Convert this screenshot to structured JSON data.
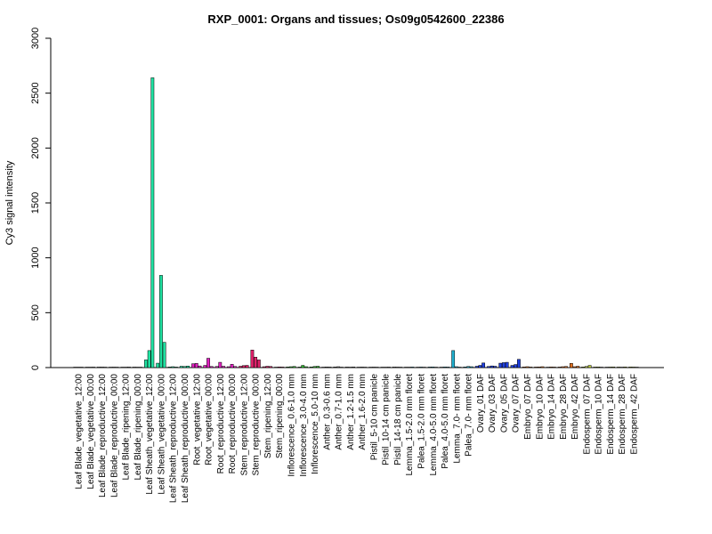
{
  "chart_data": {
    "type": "bar",
    "title": "RXP_0001: Organs and tissues; Os09g0542600_22386",
    "xlabel": "",
    "ylabel": "Cy3 signal intensity",
    "ylim": [
      0,
      3000
    ],
    "yticks": [
      0,
      500,
      1000,
      1500,
      2000,
      2500,
      3000
    ],
    "grid": false,
    "categories": [
      "Leaf Blade_vegetative_12:00",
      "Leaf Blade_vegetative_00:00",
      "Leaf Blade_reproductive_12:00",
      "Leaf Blade_reproductive_00:00",
      "Leaf Blade_ripening_12:00",
      "Leaf Blade_ripening_00:00",
      "Leaf Sheath_vegetative_12:00",
      "Leaf Sheath_vegetative_00:00",
      "Leaf Sheath_reproductive_12:00",
      "Leaf Sheath_reproductive_00:00",
      "Root_vegetative_12:00",
      "Root_vegetative_00:00",
      "Root_reproductive_12:00",
      "Root_reproductive_00:00",
      "Stem_reproductive_12:00",
      "Stem_reproductive_00:00",
      "Stem_ripening_12:00",
      "Stem_ripening_00:00",
      "Inflorescence_0.6-1.0 mm",
      "Inflorescence_3.0-4.0 mm",
      "Inflorescence_5.0-10 mm",
      "Anther_0.3-0.6 mm",
      "Anther_0.7-1.0 mm",
      "Anther_1.2-1.5 mm",
      "Anther_1.6-2.0 mm",
      "Pistil_5-10 cm panicle",
      "Pistil_10-14 cm panicle",
      "Pistil_14-18 cm panicle",
      "Lemma_1.5-2.0 mm floret",
      "Palea_1.5-2.0 mm floret",
      "Lemma_4.0-5.0 mm floret",
      "Palea_4.0-5.0 mm floret",
      "Lemma_7.0- mm floret",
      "Palea_7.0- mm floret",
      "Ovary_01 DAF",
      "Ovary_03 DAF",
      "Ovary_05 DAF",
      "Ovary_07 DAF",
      "Embryo_07 DAF",
      "Embryo_10 DAF",
      "Embryo_14 DAF",
      "Embryo_28 DAF",
      "Embryo_42 DAF",
      "Endosperm_07 DAF",
      "Endosperm_10 DAF",
      "Endosperm_14 DAF",
      "Endosperm_28 DAF",
      "Endosperm_42 DAF"
    ],
    "group_colors": [
      "#c0c0c0",
      "#c0c0c0",
      "#c0c0c0",
      "#c0c0c0",
      "#c0c0c0",
      "#c0c0c0",
      "#1fe0a0",
      "#1fe0a0",
      "#1fe0a0",
      "#1fe0a0",
      "#e020c0",
      "#e020c0",
      "#e020c0",
      "#e020c0",
      "#e0206a",
      "#e0206a",
      "#e0206a",
      "#e0206a",
      "#30c030",
      "#30c030",
      "#30c030",
      "#808080",
      "#808080",
      "#808080",
      "#808080",
      "#b0b0b0",
      "#b0b0b0",
      "#b0b0b0",
      "#20b0d0",
      "#20b0d0",
      "#20b0d0",
      "#20b0d0",
      "#20b0d0",
      "#20b0d0",
      "#2040e0",
      "#2040e0",
      "#2040e0",
      "#2040e0",
      "#e07020",
      "#e07020",
      "#e07020",
      "#e07020",
      "#e07020",
      "#c0d040",
      "#c0d040",
      "#c0d040",
      "#c0d040",
      "#c0d040"
    ],
    "replicates": [
      [
        3,
        4,
        3
      ],
      [
        4,
        3,
        5
      ],
      [
        5,
        6,
        4
      ],
      [
        3,
        5,
        4
      ],
      [
        4,
        3,
        6
      ],
      [
        5,
        4,
        3
      ],
      [
        70,
        155,
        2640
      ],
      [
        40,
        840,
        230
      ],
      [
        6,
        8,
        5
      ],
      [
        12,
        10,
        14
      ],
      [
        35,
        38,
        15
      ],
      [
        20,
        85,
        10
      ],
      [
        10,
        48,
        12
      ],
      [
        8,
        30,
        10
      ],
      [
        12,
        18,
        20
      ],
      [
        160,
        95,
        70
      ],
      [
        8,
        12,
        10
      ],
      [
        4,
        6,
        5
      ],
      [
        6,
        8,
        10
      ],
      [
        5,
        20,
        8
      ],
      [
        6,
        10,
        12
      ],
      [
        4,
        6,
        5
      ],
      [
        6,
        8,
        4
      ],
      [
        5,
        4,
        6
      ],
      [
        4,
        5,
        3
      ],
      [
        3,
        5,
        4
      ],
      [
        4,
        3,
        5
      ],
      [
        6,
        5,
        4
      ],
      [
        3,
        4,
        5
      ],
      [
        4,
        5,
        3
      ],
      [
        5,
        6,
        4
      ],
      [
        4,
        6,
        5
      ],
      [
        155,
        8,
        4
      ],
      [
        6,
        10,
        8
      ],
      [
        12,
        20,
        42
      ],
      [
        10,
        15,
        12
      ],
      [
        40,
        45,
        48
      ],
      [
        20,
        28,
        75
      ],
      [
        6,
        8,
        5
      ],
      [
        5,
        6,
        8
      ],
      [
        4,
        6,
        5
      ],
      [
        5,
        8,
        10
      ],
      [
        38,
        8,
        12
      ],
      [
        6,
        10,
        20
      ],
      [
        5,
        6,
        4
      ],
      [
        4,
        5,
        6
      ],
      [
        5,
        4,
        6
      ],
      [
        6,
        5,
        4
      ]
    ]
  }
}
